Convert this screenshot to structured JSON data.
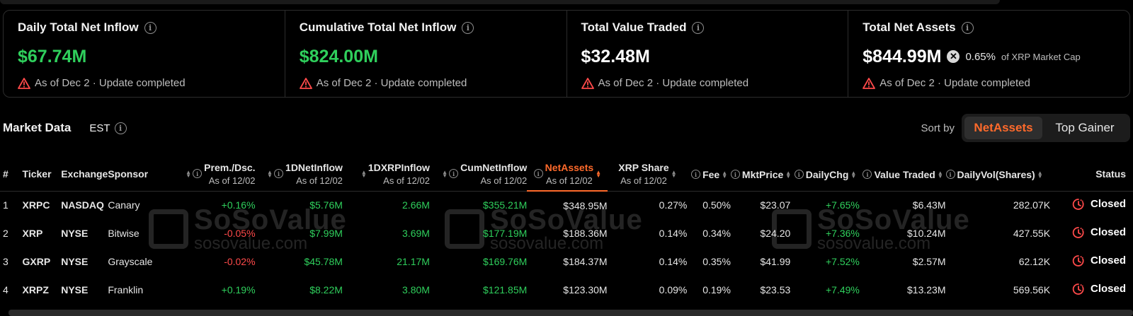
{
  "cards": [
    {
      "title": "Daily Total Net Inflow",
      "value": "$67.74M",
      "foot": "As of Dec 2 · Update completed"
    },
    {
      "title": "Cumulative Total Net Inflow",
      "value": "$824.00M",
      "foot": "As of Dec 2 · Update completed"
    },
    {
      "title": "Total Value Traded",
      "value": "$32.48M",
      "foot": "As of Dec 2 · Update completed"
    },
    {
      "title": "Total Net Assets",
      "value": "$844.99M",
      "share": "0.65%",
      "share_sub": "of XRP Market Cap",
      "foot": "As of Dec 2 · Update completed"
    }
  ],
  "market": {
    "title": "Market Data",
    "tz": "EST",
    "sort_label": "Sort by",
    "sort_active": "NetAssets",
    "sort_other": "Top Gainer"
  },
  "columns": {
    "idx": "#",
    "ticker": "Ticker",
    "exchange": "Exchange",
    "sponsor": "Sponsor",
    "prem": "Prem./Dsc.",
    "inflow": "1DNetInflow",
    "xrpinflow": "1DXRPInflow",
    "cum": "CumNetInflow",
    "assets": "NetAssets",
    "share": "XRP Share",
    "fee": "Fee",
    "price": "MktPrice",
    "chg": "DailyChg",
    "traded": "Value Traded",
    "vol": "DailyVol(Shares)",
    "status": "Status",
    "asof": "As of 12/02"
  },
  "rows": [
    {
      "idx": "1",
      "ticker": "XRPC",
      "exchange": "NASDAQ",
      "sponsor": "Canary",
      "prem": "+0.16%",
      "inflow": "$5.76M",
      "xrpinflow": "2.66M",
      "cum": "$355.21M",
      "assets": "$348.95M",
      "share": "0.27%",
      "fee": "0.50%",
      "price": "$23.07",
      "chg": "+7.65%",
      "traded": "$6.43M",
      "vol": "282.07K",
      "status": "Closed"
    },
    {
      "idx": "2",
      "ticker": "XRP",
      "exchange": "NYSE",
      "sponsor": "Bitwise",
      "prem": "-0.05%",
      "inflow": "$7.99M",
      "xrpinflow": "3.69M",
      "cum": "$177.19M",
      "assets": "$188.36M",
      "share": "0.14%",
      "fee": "0.34%",
      "price": "$24.20",
      "chg": "+7.36%",
      "traded": "$10.24M",
      "vol": "427.55K",
      "status": "Closed"
    },
    {
      "idx": "3",
      "ticker": "GXRP",
      "exchange": "NYSE",
      "sponsor": "Grayscale",
      "prem": "-0.02%",
      "inflow": "$45.78M",
      "xrpinflow": "21.17M",
      "cum": "$169.76M",
      "assets": "$184.37M",
      "share": "0.14%",
      "fee": "0.35%",
      "price": "$41.99",
      "chg": "+7.52%",
      "traded": "$2.57M",
      "vol": "62.12K",
      "status": "Closed"
    },
    {
      "idx": "4",
      "ticker": "XRPZ",
      "exchange": "NYSE",
      "sponsor": "Franklin",
      "prem": "+0.19%",
      "inflow": "$8.22M",
      "xrpinflow": "3.80M",
      "cum": "$121.85M",
      "assets": "$123.30M",
      "share": "0.09%",
      "fee": "0.19%",
      "price": "$23.53",
      "chg": "+7.49%",
      "traded": "$13.23M",
      "vol": "569.56K",
      "status": "Closed"
    }
  ],
  "watermark": {
    "brand": "SoSoValue",
    "url": "sosovalue.com"
  },
  "colors": {
    "accent": "#ff6a2b",
    "positive": "#2fcf5c",
    "negative": "#ff4a4a"
  }
}
